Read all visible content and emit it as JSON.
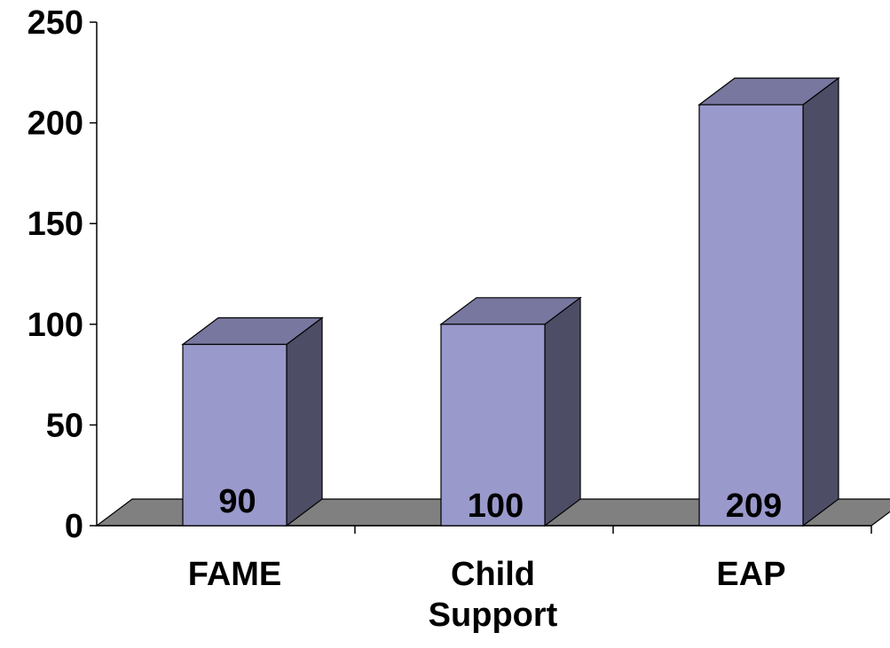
{
  "chart_data": {
    "type": "bar",
    "style": "3d",
    "categories": [
      "FAME",
      "Child\nSupport",
      "EAP"
    ],
    "values": [
      90,
      100,
      209
    ],
    "data_labels": [
      "90",
      "100",
      "209"
    ],
    "ylim": [
      0,
      250
    ],
    "yticks": [
      "0",
      "50",
      "100",
      "150",
      "200",
      "250"
    ],
    "grid": false,
    "legend": "none",
    "colors": {
      "bar_front": "#9999cc",
      "bar_top": "#77779f",
      "bar_side": "#4d4d66",
      "floor": "#808080",
      "axis": "#000000"
    }
  }
}
